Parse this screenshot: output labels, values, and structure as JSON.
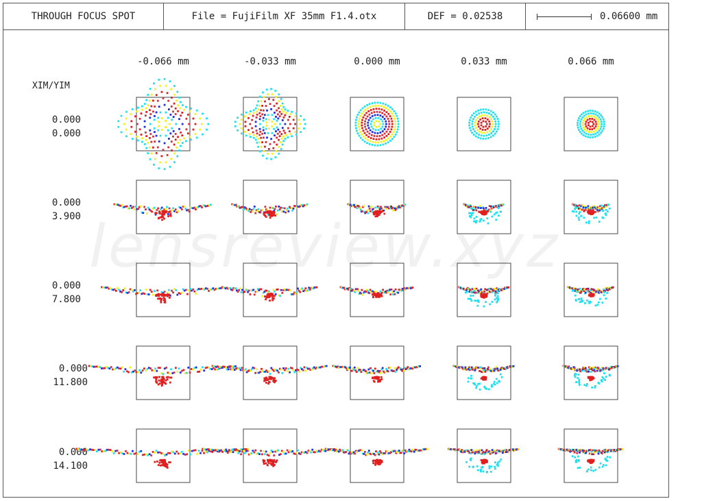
{
  "header": {
    "title": "THROUGH FOCUS SPOT",
    "file": "File = FujiFilm XF 35mm F1.4.otx",
    "def": "DEF = 0.02538",
    "scale": "0.06600 mm"
  },
  "axis_label": "XIM/YIM",
  "columns": [
    "-0.066  mm",
    "-0.033  mm",
    "0.000  mm",
    "0.033  mm",
    "0.066  mm"
  ],
  "rows": [
    {
      "xim": "0.000",
      "yim": "0.000"
    },
    {
      "xim": "0.000",
      "yim": "3.900"
    },
    {
      "xim": "0.000",
      "yim": "7.800"
    },
    {
      "xim": "0.000",
      "yim": "11.800"
    },
    {
      "xim": "0.000",
      "yim": "14.100"
    }
  ],
  "watermark": "lensreview.xyz",
  "colors": {
    "wavelengths": [
      "#e02020",
      "#f0f020",
      "#20e0f0",
      "#2030e0",
      "#d03040"
    ],
    "frame": "#555555"
  }
}
